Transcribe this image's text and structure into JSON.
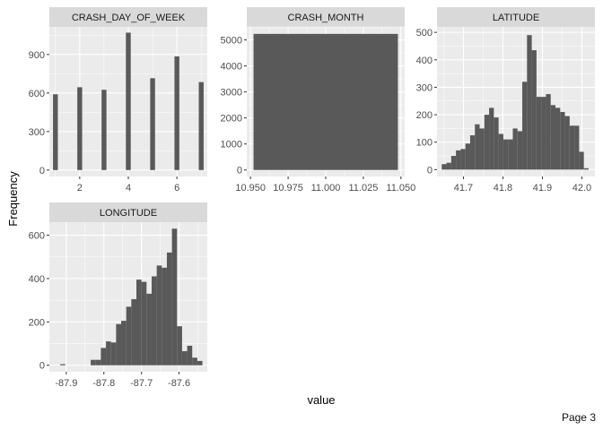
{
  "page": {
    "label": "Page 3"
  },
  "colors": {
    "panel_bg": "#ebebeb",
    "strip_bg": "#d9d9d9",
    "grid_major": "#ffffff",
    "bar_fill": "#595959",
    "tick_text": "#4d4d4d",
    "axis_title": "#000000"
  },
  "chart_data": {
    "type": "bar",
    "kind": "faceted histogram",
    "xlabel": "value",
    "ylabel": "Frequency",
    "grid": true,
    "facets": [
      {
        "strip": "CRASH_DAY_OF_WEEK",
        "xlim": [
          0.75,
          7.25
        ],
        "ylim": [
          -50,
          1115
        ],
        "x_ticks": [
          2,
          4,
          6
        ],
        "x_tick_labels": [
          "2",
          "4",
          "6"
        ],
        "y_ticks": [
          0,
          300,
          600,
          900
        ],
        "y_tick_labels": [
          "0",
          "300",
          "600",
          "900"
        ],
        "bins": [
          {
            "x0": 0.9,
            "x1": 1.1,
            "count": 590
          },
          {
            "x0": 1.9,
            "x1": 2.1,
            "count": 645
          },
          {
            "x0": 2.9,
            "x1": 3.1,
            "count": 625
          },
          {
            "x0": 3.9,
            "x1": 4.1,
            "count": 1070
          },
          {
            "x0": 4.9,
            "x1": 5.1,
            "count": 715
          },
          {
            "x0": 5.9,
            "x1": 6.1,
            "count": 885
          },
          {
            "x0": 6.9,
            "x1": 7.1,
            "count": 685
          }
        ]
      },
      {
        "strip": "CRASH_MONTH",
        "xlim": [
          10.9475,
          11.0525
        ],
        "ylim": [
          -250,
          5500
        ],
        "x_ticks": [
          10.95,
          10.975,
          11.0,
          11.025,
          11.05
        ],
        "x_tick_labels": [
          "10.950",
          "10.975",
          "11.000",
          "11.025",
          "11.050"
        ],
        "y_ticks": [
          0,
          1000,
          2000,
          3000,
          4000,
          5000
        ],
        "y_tick_labels": [
          "0",
          "1000",
          "2000",
          "3000",
          "4000",
          "5000"
        ],
        "bins": [
          {
            "x0": 10.952,
            "x1": 11.048,
            "count": 5230
          }
        ]
      },
      {
        "strip": "LATITUDE",
        "xlim": [
          41.633,
          42.033
        ],
        "ylim": [
          -25,
          520
        ],
        "x_ticks": [
          41.7,
          41.8,
          41.9,
          42.0
        ],
        "x_tick_labels": [
          "41.7",
          "41.8",
          "41.9",
          "42.0"
        ],
        "y_ticks": [
          0,
          100,
          200,
          300,
          400,
          500
        ],
        "y_tick_labels": [
          "0",
          "100",
          "200",
          "300",
          "400",
          "500"
        ],
        "bins": [
          {
            "x0": 41.645,
            "x1": 41.657,
            "count": 20
          },
          {
            "x0": 41.657,
            "x1": 41.669,
            "count": 25
          },
          {
            "x0": 41.669,
            "x1": 41.681,
            "count": 50
          },
          {
            "x0": 41.681,
            "x1": 41.693,
            "count": 70
          },
          {
            "x0": 41.693,
            "x1": 41.705,
            "count": 75
          },
          {
            "x0": 41.705,
            "x1": 41.717,
            "count": 95
          },
          {
            "x0": 41.717,
            "x1": 41.729,
            "count": 125
          },
          {
            "x0": 41.729,
            "x1": 41.741,
            "count": 165
          },
          {
            "x0": 41.741,
            "x1": 41.753,
            "count": 150
          },
          {
            "x0": 41.753,
            "x1": 41.765,
            "count": 200
          },
          {
            "x0": 41.765,
            "x1": 41.777,
            "count": 225
          },
          {
            "x0": 41.777,
            "x1": 41.789,
            "count": 190
          },
          {
            "x0": 41.789,
            "x1": 41.801,
            "count": 130
          },
          {
            "x0": 41.801,
            "x1": 41.813,
            "count": 110
          },
          {
            "x0": 41.813,
            "x1": 41.825,
            "count": 110
          },
          {
            "x0": 41.825,
            "x1": 41.837,
            "count": 150
          },
          {
            "x0": 41.837,
            "x1": 41.849,
            "count": 140
          },
          {
            "x0": 41.849,
            "x1": 41.861,
            "count": 320
          },
          {
            "x0": 41.861,
            "x1": 41.873,
            "count": 490
          },
          {
            "x0": 41.873,
            "x1": 41.885,
            "count": 435
          },
          {
            "x0": 41.885,
            "x1": 41.897,
            "count": 265
          },
          {
            "x0": 41.897,
            "x1": 41.909,
            "count": 265
          },
          {
            "x0": 41.909,
            "x1": 41.921,
            "count": 275
          },
          {
            "x0": 41.921,
            "x1": 41.933,
            "count": 235
          },
          {
            "x0": 41.933,
            "x1": 41.945,
            "count": 225
          },
          {
            "x0": 41.945,
            "x1": 41.957,
            "count": 210
          },
          {
            "x0": 41.957,
            "x1": 41.969,
            "count": 195
          },
          {
            "x0": 41.969,
            "x1": 41.981,
            "count": 160
          },
          {
            "x0": 41.981,
            "x1": 41.993,
            "count": 160
          },
          {
            "x0": 41.993,
            "x1": 42.005,
            "count": 65
          },
          {
            "x0": 42.005,
            "x1": 42.017,
            "count": 5
          }
        ]
      },
      {
        "strip": "LONGITUDE",
        "xlim": [
          -87.945,
          -87.525
        ],
        "ylim": [
          -30,
          660
        ],
        "x_ticks": [
          -87.9,
          -87.8,
          -87.7,
          -87.6
        ],
        "x_tick_labels": [
          "-87.9",
          "-87.8",
          "-87.7",
          "-87.6"
        ],
        "y_ticks": [
          0,
          200,
          400,
          600
        ],
        "y_tick_labels": [
          "0",
          "200",
          "400",
          "600"
        ],
        "bins": [
          {
            "x0": -87.916,
            "x1": -87.9025,
            "count": 5
          },
          {
            "x0": -87.835,
            "x1": -87.8215,
            "count": 25
          },
          {
            "x0": -87.8215,
            "x1": -87.808,
            "count": 25
          },
          {
            "x0": -87.808,
            "x1": -87.7945,
            "count": 80
          },
          {
            "x0": -87.7945,
            "x1": -87.781,
            "count": 110
          },
          {
            "x0": -87.781,
            "x1": -87.7675,
            "count": 105
          },
          {
            "x0": -87.7675,
            "x1": -87.754,
            "count": 190
          },
          {
            "x0": -87.754,
            "x1": -87.7405,
            "count": 205
          },
          {
            "x0": -87.7405,
            "x1": -87.727,
            "count": 270
          },
          {
            "x0": -87.727,
            "x1": -87.7135,
            "count": 305
          },
          {
            "x0": -87.7135,
            "x1": -87.7,
            "count": 395
          },
          {
            "x0": -87.7,
            "x1": -87.6865,
            "count": 385
          },
          {
            "x0": -87.6865,
            "x1": -87.673,
            "count": 330
          },
          {
            "x0": -87.673,
            "x1": -87.6595,
            "count": 410
          },
          {
            "x0": -87.6595,
            "x1": -87.646,
            "count": 460
          },
          {
            "x0": -87.646,
            "x1": -87.6325,
            "count": 450
          },
          {
            "x0": -87.6325,
            "x1": -87.619,
            "count": 520
          },
          {
            "x0": -87.619,
            "x1": -87.6055,
            "count": 630
          },
          {
            "x0": -87.6055,
            "x1": -87.592,
            "count": 180
          },
          {
            "x0": -87.592,
            "x1": -87.5785,
            "count": 65
          },
          {
            "x0": -87.5785,
            "x1": -87.565,
            "count": 90
          },
          {
            "x0": -87.565,
            "x1": -87.5515,
            "count": 35
          },
          {
            "x0": -87.5515,
            "x1": -87.538,
            "count": 20
          }
        ]
      }
    ]
  }
}
